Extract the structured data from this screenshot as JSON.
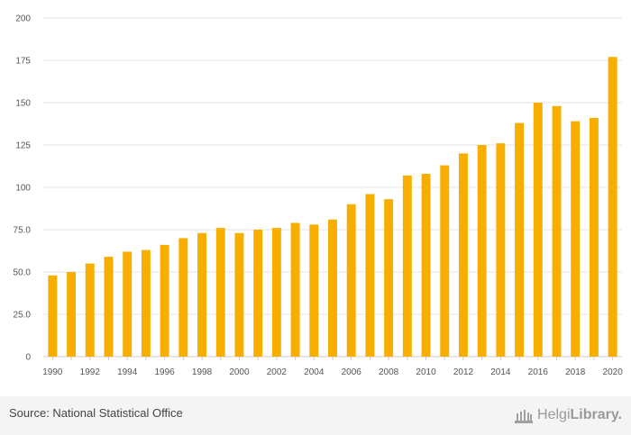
{
  "chart_data": {
    "type": "bar",
    "title": "",
    "xlabel": "",
    "ylabel": "",
    "ylim": [
      0,
      200
    ],
    "yticks": [
      0,
      25,
      50,
      75,
      100,
      125,
      150,
      175,
      200
    ],
    "ytick_labels": [
      "0",
      "25.0",
      "50.0",
      "75.0",
      "100",
      "125",
      "150",
      "175",
      "200"
    ],
    "xtick_labels": [
      "1990",
      "1992",
      "1994",
      "1996",
      "1998",
      "2000",
      "2002",
      "2004",
      "2006",
      "2008",
      "2010",
      "2012",
      "2014",
      "2016",
      "2018",
      "2020"
    ],
    "categories": [
      "1990",
      "1991",
      "1992",
      "1993",
      "1994",
      "1995",
      "1996",
      "1997",
      "1998",
      "1999",
      "2000",
      "2001",
      "2002",
      "2003",
      "2004",
      "2005",
      "2006",
      "2007",
      "2008",
      "2009",
      "2010",
      "2011",
      "2012",
      "2013",
      "2014",
      "2015",
      "2016",
      "2017",
      "2018",
      "2019",
      "2020"
    ],
    "values": [
      48,
      50,
      55,
      59,
      62,
      63,
      66,
      70,
      73,
      76,
      73,
      75,
      76,
      79,
      78,
      81,
      90,
      96,
      93,
      107,
      108,
      113,
      120,
      125,
      126,
      138,
      150,
      148,
      139,
      141,
      177
    ],
    "bar_color": "#f7ae00",
    "grid": true
  },
  "footer": {
    "source": "Source: National Statistical Office",
    "logo_part1": "Helgi",
    "logo_part2": "Library."
  }
}
